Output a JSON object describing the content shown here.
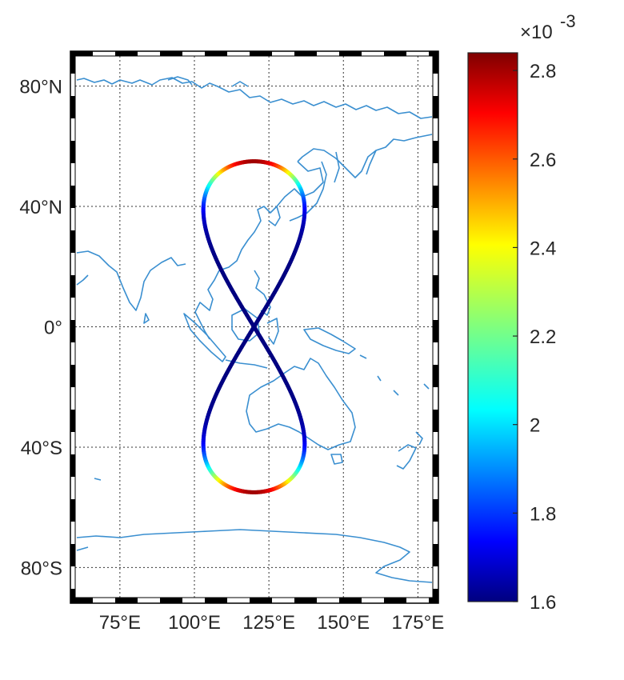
{
  "map": {
    "lat_ticks": [
      {
        "value": 80,
        "label": "80°N"
      },
      {
        "value": 40,
        "label": "40°N"
      },
      {
        "value": 0,
        "label": "0°"
      },
      {
        "value": -40,
        "label": "40°S"
      },
      {
        "value": -80,
        "label": "80°S"
      }
    ],
    "lon_ticks": [
      {
        "value": 75,
        "label": "75°E"
      },
      {
        "value": 100,
        "label": "100°E"
      },
      {
        "value": 125,
        "label": "125°E"
      },
      {
        "value": 150,
        "label": "150°E"
      },
      {
        "value": 175,
        "label": "175°E"
      }
    ],
    "lon_range": [
      60,
      180
    ],
    "lat_range": [
      -90,
      90
    ],
    "grid": "dotted",
    "coastline_color": "#3a8fd0",
    "frame_style": "black-white-striped"
  },
  "chart_data": {
    "type": "scatter",
    "description_of_track": "figure-eight ground track",
    "center_lon": 120,
    "lon_amplitude": 17,
    "lat_amplitude": 55,
    "value_range": [
      0.0016,
      0.0028
    ],
    "colormap": "jet"
  },
  "colorbar": {
    "ticks": [
      {
        "value": 1.6,
        "label": "1.6"
      },
      {
        "value": 1.8,
        "label": "1.8"
      },
      {
        "value": 2.0,
        "label": "2"
      },
      {
        "value": 2.2,
        "label": "2.2"
      },
      {
        "value": 2.4,
        "label": "2.4"
      },
      {
        "value": 2.6,
        "label": "2.6"
      },
      {
        "value": 2.8,
        "label": "2.8"
      }
    ],
    "range": [
      1.6,
      2.84
    ],
    "multiplier_base": "×10",
    "multiplier_exp": "-3"
  }
}
